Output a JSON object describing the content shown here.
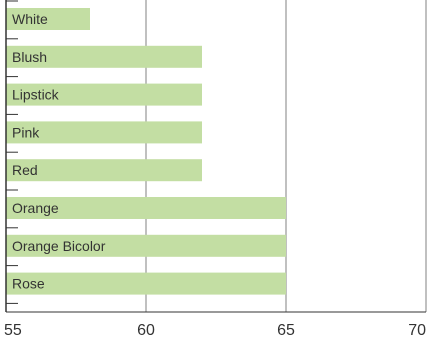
{
  "chart_data": {
    "type": "bar",
    "orientation": "horizontal",
    "categories": [
      "White",
      "Blush",
      "Lipstick",
      "Pink",
      "Red",
      "Orange",
      "Orange Bicolor",
      "Rose"
    ],
    "values": [
      58,
      62,
      62,
      62,
      62,
      65,
      65,
      65
    ],
    "title": "",
    "xlabel": "",
    "ylabel": "",
    "xlim": [
      55,
      70
    ],
    "xticks": [
      55,
      60,
      65,
      70
    ],
    "grid": true,
    "legend": "none",
    "bar_color": "#c3dea3",
    "grid_color": "#808080",
    "axis_color": "#333333",
    "text_color": "#333333"
  }
}
